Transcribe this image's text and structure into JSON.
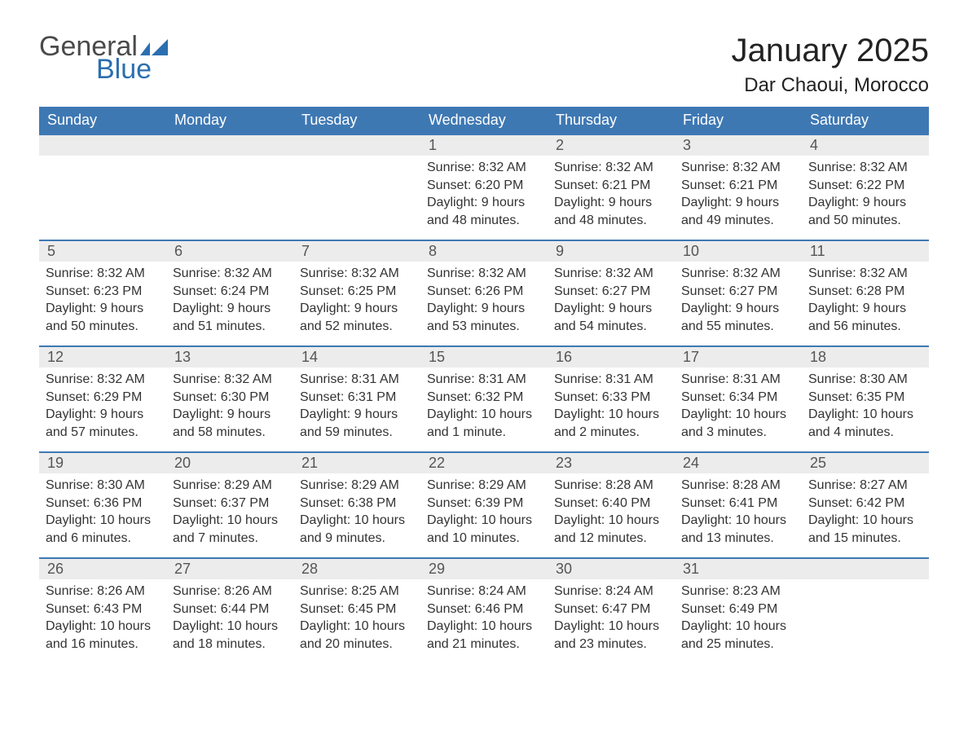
{
  "brand": {
    "word1": "General",
    "word2": "Blue"
  },
  "title": "January 2025",
  "location": "Dar Chaoui, Morocco",
  "colors": {
    "header_bg": "#3e78b3",
    "row_divider": "#3e78b3",
    "daynum_bg": "#ececec",
    "text": "#333333",
    "brand_gray": "#4a4a4a",
    "brand_blue": "#2b6fb0",
    "background": "#ffffff"
  },
  "typography": {
    "title_fontsize": 40,
    "location_fontsize": 24,
    "weekday_fontsize": 18,
    "daynum_fontsize": 18,
    "body_fontsize": 16
  },
  "layout": {
    "columns": 7,
    "rows": 5
  },
  "weekdays": [
    "Sunday",
    "Monday",
    "Tuesday",
    "Wednesday",
    "Thursday",
    "Friday",
    "Saturday"
  ],
  "weeks": [
    [
      null,
      null,
      null,
      {
        "num": "1",
        "sunrise": "Sunrise: 8:32 AM",
        "sunset": "Sunset: 6:20 PM",
        "daylight": "Daylight: 9 hours and 48 minutes."
      },
      {
        "num": "2",
        "sunrise": "Sunrise: 8:32 AM",
        "sunset": "Sunset: 6:21 PM",
        "daylight": "Daylight: 9 hours and 48 minutes."
      },
      {
        "num": "3",
        "sunrise": "Sunrise: 8:32 AM",
        "sunset": "Sunset: 6:21 PM",
        "daylight": "Daylight: 9 hours and 49 minutes."
      },
      {
        "num": "4",
        "sunrise": "Sunrise: 8:32 AM",
        "sunset": "Sunset: 6:22 PM",
        "daylight": "Daylight: 9 hours and 50 minutes."
      }
    ],
    [
      {
        "num": "5",
        "sunrise": "Sunrise: 8:32 AM",
        "sunset": "Sunset: 6:23 PM",
        "daylight": "Daylight: 9 hours and 50 minutes."
      },
      {
        "num": "6",
        "sunrise": "Sunrise: 8:32 AM",
        "sunset": "Sunset: 6:24 PM",
        "daylight": "Daylight: 9 hours and 51 minutes."
      },
      {
        "num": "7",
        "sunrise": "Sunrise: 8:32 AM",
        "sunset": "Sunset: 6:25 PM",
        "daylight": "Daylight: 9 hours and 52 minutes."
      },
      {
        "num": "8",
        "sunrise": "Sunrise: 8:32 AM",
        "sunset": "Sunset: 6:26 PM",
        "daylight": "Daylight: 9 hours and 53 minutes."
      },
      {
        "num": "9",
        "sunrise": "Sunrise: 8:32 AM",
        "sunset": "Sunset: 6:27 PM",
        "daylight": "Daylight: 9 hours and 54 minutes."
      },
      {
        "num": "10",
        "sunrise": "Sunrise: 8:32 AM",
        "sunset": "Sunset: 6:27 PM",
        "daylight": "Daylight: 9 hours and 55 minutes."
      },
      {
        "num": "11",
        "sunrise": "Sunrise: 8:32 AM",
        "sunset": "Sunset: 6:28 PM",
        "daylight": "Daylight: 9 hours and 56 minutes."
      }
    ],
    [
      {
        "num": "12",
        "sunrise": "Sunrise: 8:32 AM",
        "sunset": "Sunset: 6:29 PM",
        "daylight": "Daylight: 9 hours and 57 minutes."
      },
      {
        "num": "13",
        "sunrise": "Sunrise: 8:32 AM",
        "sunset": "Sunset: 6:30 PM",
        "daylight": "Daylight: 9 hours and 58 minutes."
      },
      {
        "num": "14",
        "sunrise": "Sunrise: 8:31 AM",
        "sunset": "Sunset: 6:31 PM",
        "daylight": "Daylight: 9 hours and 59 minutes."
      },
      {
        "num": "15",
        "sunrise": "Sunrise: 8:31 AM",
        "sunset": "Sunset: 6:32 PM",
        "daylight": "Daylight: 10 hours and 1 minute."
      },
      {
        "num": "16",
        "sunrise": "Sunrise: 8:31 AM",
        "sunset": "Sunset: 6:33 PM",
        "daylight": "Daylight: 10 hours and 2 minutes."
      },
      {
        "num": "17",
        "sunrise": "Sunrise: 8:31 AM",
        "sunset": "Sunset: 6:34 PM",
        "daylight": "Daylight: 10 hours and 3 minutes."
      },
      {
        "num": "18",
        "sunrise": "Sunrise: 8:30 AM",
        "sunset": "Sunset: 6:35 PM",
        "daylight": "Daylight: 10 hours and 4 minutes."
      }
    ],
    [
      {
        "num": "19",
        "sunrise": "Sunrise: 8:30 AM",
        "sunset": "Sunset: 6:36 PM",
        "daylight": "Daylight: 10 hours and 6 minutes."
      },
      {
        "num": "20",
        "sunrise": "Sunrise: 8:29 AM",
        "sunset": "Sunset: 6:37 PM",
        "daylight": "Daylight: 10 hours and 7 minutes."
      },
      {
        "num": "21",
        "sunrise": "Sunrise: 8:29 AM",
        "sunset": "Sunset: 6:38 PM",
        "daylight": "Daylight: 10 hours and 9 minutes."
      },
      {
        "num": "22",
        "sunrise": "Sunrise: 8:29 AM",
        "sunset": "Sunset: 6:39 PM",
        "daylight": "Daylight: 10 hours and 10 minutes."
      },
      {
        "num": "23",
        "sunrise": "Sunrise: 8:28 AM",
        "sunset": "Sunset: 6:40 PM",
        "daylight": "Daylight: 10 hours and 12 minutes."
      },
      {
        "num": "24",
        "sunrise": "Sunrise: 8:28 AM",
        "sunset": "Sunset: 6:41 PM",
        "daylight": "Daylight: 10 hours and 13 minutes."
      },
      {
        "num": "25",
        "sunrise": "Sunrise: 8:27 AM",
        "sunset": "Sunset: 6:42 PM",
        "daylight": "Daylight: 10 hours and 15 minutes."
      }
    ],
    [
      {
        "num": "26",
        "sunrise": "Sunrise: 8:26 AM",
        "sunset": "Sunset: 6:43 PM",
        "daylight": "Daylight: 10 hours and 16 minutes."
      },
      {
        "num": "27",
        "sunrise": "Sunrise: 8:26 AM",
        "sunset": "Sunset: 6:44 PM",
        "daylight": "Daylight: 10 hours and 18 minutes."
      },
      {
        "num": "28",
        "sunrise": "Sunrise: 8:25 AM",
        "sunset": "Sunset: 6:45 PM",
        "daylight": "Daylight: 10 hours and 20 minutes."
      },
      {
        "num": "29",
        "sunrise": "Sunrise: 8:24 AM",
        "sunset": "Sunset: 6:46 PM",
        "daylight": "Daylight: 10 hours and 21 minutes."
      },
      {
        "num": "30",
        "sunrise": "Sunrise: 8:24 AM",
        "sunset": "Sunset: 6:47 PM",
        "daylight": "Daylight: 10 hours and 23 minutes."
      },
      {
        "num": "31",
        "sunrise": "Sunrise: 8:23 AM",
        "sunset": "Sunset: 6:49 PM",
        "daylight": "Daylight: 10 hours and 25 minutes."
      },
      null
    ]
  ]
}
